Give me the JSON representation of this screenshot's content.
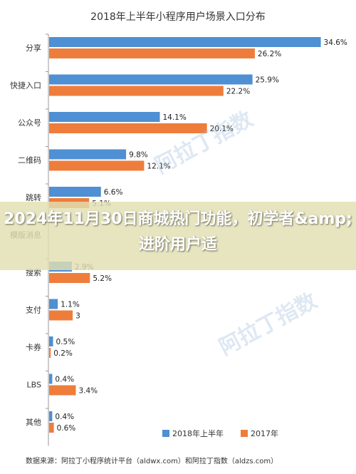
{
  "chart_data": {
    "type": "bar",
    "orientation": "horizontal",
    "title": "2018年上半年小程序用户场景入口分布",
    "categories": [
      "分享",
      "快捷入口",
      "公众号",
      "二维码",
      "跳转",
      "模版消息",
      "搜索",
      "支付",
      "卡券",
      "LBS",
      "其他"
    ],
    "series": [
      {
        "name": "2018年上半年",
        "color": "#4f8fd3",
        "values": [
          34.6,
          25.9,
          14.1,
          9.8,
          6.6,
          null,
          2.9,
          1.1,
          0.5,
          0.4,
          0.4
        ],
        "labels": [
          "34.6%",
          "25.9%",
          "14.1%",
          "9.8%",
          "6.6%",
          "",
          "2.9%",
          "1.1%",
          "0.5%",
          "0.4%",
          "0.4%"
        ]
      },
      {
        "name": "2017年",
        "color": "#ee7d3b",
        "values": [
          26.2,
          22.2,
          20.1,
          12.1,
          5.1,
          null,
          5.2,
          3,
          0.2,
          3.4,
          0.6
        ],
        "labels": [
          "26.2%",
          "22.2%",
          "20.1%",
          "12.1%",
          "5.1%",
          "",
          "5.2%",
          "3",
          "0.2%",
          "3.4%",
          "0.6%"
        ]
      }
    ],
    "xlim": [
      0,
      36
    ],
    "grid": false,
    "legend_position": "bottom"
  },
  "source_note": "数据来源：阿拉丁小程序统计平台（aldwx.com）和阿拉丁指数（aldzs.com）",
  "overlay": {
    "headline": "2024年11月30日商城热门功能，初学者&amp;进阶用户适"
  },
  "watermark": {
    "text": "阿拉丁指数",
    "sub": "Aldzs.com"
  }
}
